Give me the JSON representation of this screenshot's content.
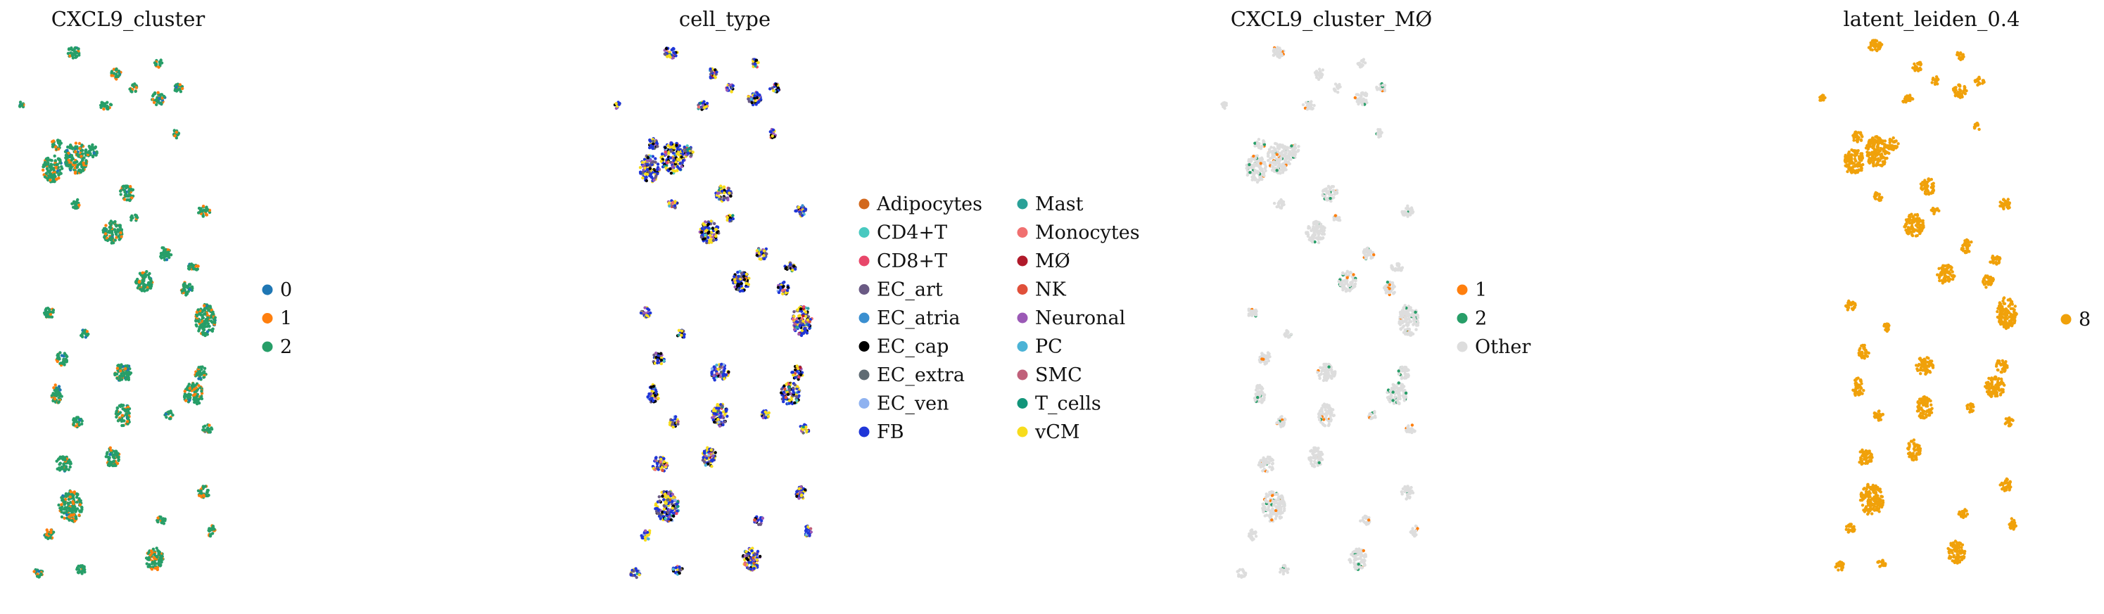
{
  "chart_data": [
    {
      "type": "scatter",
      "title": "CXCL9_cluster",
      "legend_position": "right",
      "legend": [
        {
          "label": "0",
          "color": "#1f77b4"
        },
        {
          "label": "1",
          "color": "#ff7f0e"
        },
        {
          "label": "2",
          "color": "#279e68"
        }
      ]
    },
    {
      "type": "scatter",
      "title": "cell_type",
      "legend_position": "right",
      "legend": [
        {
          "label": "Adipocytes",
          "color": "#d2691e"
        },
        {
          "label": "CD4+T",
          "color": "#48c9c0"
        },
        {
          "label": "CD8+T",
          "color": "#e8476a"
        },
        {
          "label": "EC_art",
          "color": "#6a5a84"
        },
        {
          "label": "EC_atria",
          "color": "#3a8fd0"
        },
        {
          "label": "EC_cap",
          "color": "#000000"
        },
        {
          "label": "EC_extra",
          "color": "#5f6b73"
        },
        {
          "label": "EC_ven",
          "color": "#8fb2f0"
        },
        {
          "label": "FB",
          "color": "#1f36d8"
        },
        {
          "label": "Mast",
          "color": "#2aa198"
        },
        {
          "label": "Monocytes",
          "color": "#f07070"
        },
        {
          "label": "MØ",
          "color": "#b0192a"
        },
        {
          "label": "NK",
          "color": "#e0503a"
        },
        {
          "label": "Neuronal",
          "color": "#9b59b6"
        },
        {
          "label": "PC",
          "color": "#4bb3d6"
        },
        {
          "label": "SMC",
          "color": "#c0607a"
        },
        {
          "label": "T_cells",
          "color": "#12957a"
        },
        {
          "label": "vCM",
          "color": "#f7dc1c"
        }
      ]
    },
    {
      "type": "scatter",
      "title": "CXCL9_cluster_MØ",
      "legend_position": "right",
      "legend": [
        {
          "label": "1",
          "color": "#ff7f0e"
        },
        {
          "label": "2",
          "color": "#279e68"
        },
        {
          "label": "Other",
          "color": "#dddddd"
        }
      ]
    },
    {
      "type": "scatter",
      "title": "latent_leiden_0.4",
      "legend_position": "right",
      "legend": [
        {
          "label": "8",
          "color": "#f0a10a"
        }
      ]
    }
  ]
}
